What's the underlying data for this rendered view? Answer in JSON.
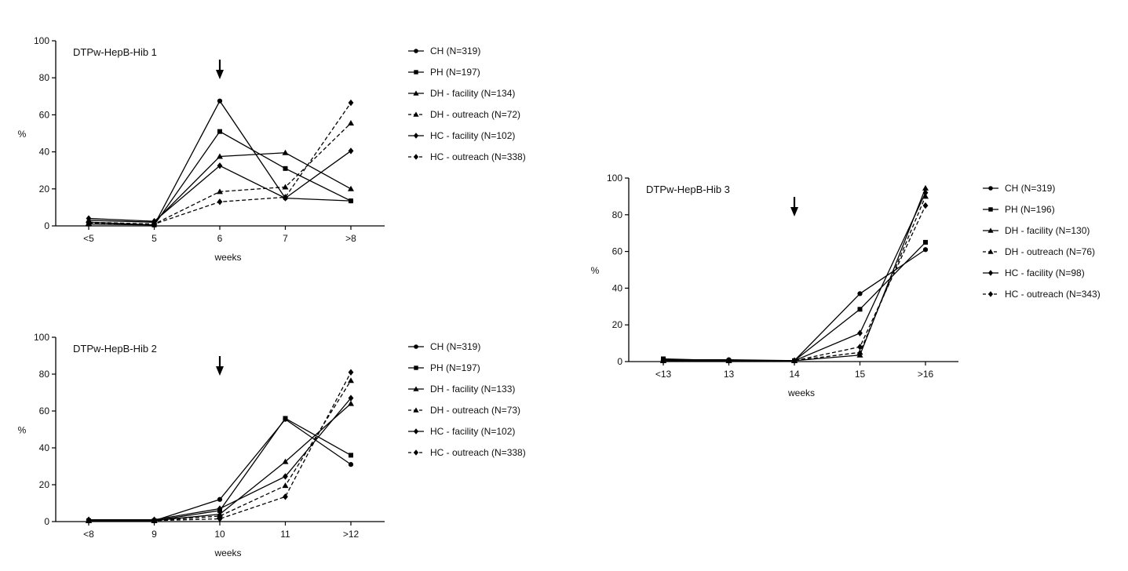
{
  "chart_data": [
    {
      "type": "line",
      "title": "DTPw-HepB-Hib 1",
      "xlabel": "weeks",
      "ylabel": "%",
      "categories": [
        "<5",
        "5",
        "6",
        "7",
        ">8"
      ],
      "ylim": [
        0,
        100
      ],
      "yticks": [
        "0",
        "20",
        "40",
        "60",
        "80",
        "100"
      ],
      "arrow_at": "6",
      "legend_position": "right",
      "series": [
        {
          "name": "CH (N=319)",
          "marker": "circle",
          "dashed": false,
          "values": [
            2,
            0.5,
            67.5,
            15,
            13.5
          ]
        },
        {
          "name": "PH (N=197)",
          "marker": "square",
          "dashed": false,
          "values": [
            1,
            0.5,
            51,
            31,
            13.5
          ]
        },
        {
          "name": "DH - facility (N=134)",
          "marker": "triangle",
          "dashed": false,
          "values": [
            3,
            2,
            37.5,
            39.5,
            20
          ]
        },
        {
          "name": "DH - outreach (N=72)",
          "marker": "triangle",
          "dashed": true,
          "values": [
            1.5,
            1,
            18.5,
            21,
            55.5
          ]
        },
        {
          "name": "HC - facility (N=102)",
          "marker": "diamond",
          "dashed": false,
          "values": [
            4,
            2.5,
            32.5,
            15,
            40.5
          ]
        },
        {
          "name": "HC - outreach (N=338)",
          "marker": "diamond",
          "dashed": true,
          "values": [
            2,
            1,
            13,
            15.5,
            66.5
          ]
        }
      ]
    },
    {
      "type": "line",
      "title": "DTPw-HepB-Hib 2",
      "xlabel": "weeks",
      "ylabel": "%",
      "categories": [
        "<8",
        "9",
        "10",
        "11",
        ">12"
      ],
      "ylim": [
        0,
        100
      ],
      "yticks": [
        "0",
        "20",
        "40",
        "60",
        "80",
        "100"
      ],
      "arrow_at": "10",
      "legend_position": "right",
      "series": [
        {
          "name": "CH (N=319)",
          "marker": "circle",
          "dashed": false,
          "values": [
            0.5,
            0.5,
            12,
            55.5,
            31
          ]
        },
        {
          "name": "PH (N=197)",
          "marker": "square",
          "dashed": false,
          "values": [
            0.5,
            0.5,
            6,
            56,
            36
          ]
        },
        {
          "name": "DH - facility (N=133)",
          "marker": "triangle",
          "dashed": false,
          "values": [
            0.5,
            0.5,
            4,
            32.5,
            64
          ]
        },
        {
          "name": "DH - outreach (N=73)",
          "marker": "triangle",
          "dashed": true,
          "values": [
            0.5,
            0.5,
            3,
            19.5,
            76.5
          ]
        },
        {
          "name": "HC - facility (N=102)",
          "marker": "diamond",
          "dashed": false,
          "values": [
            1,
            1,
            7,
            24.5,
            67
          ]
        },
        {
          "name": "HC - outreach (N=338)",
          "marker": "diamond",
          "dashed": true,
          "values": [
            0.5,
            0.5,
            1.5,
            13.5,
            81
          ]
        }
      ]
    },
    {
      "type": "line",
      "title": "DTPw-HepB-Hib 3",
      "xlabel": "weeks",
      "ylabel": "%",
      "categories": [
        "<13",
        "13",
        "14",
        "15",
        ">16"
      ],
      "ylim": [
        0,
        100
      ],
      "yticks": [
        "0",
        "20",
        "40",
        "60",
        "80",
        "100"
      ],
      "arrow_at": "14",
      "legend_position": "right",
      "series": [
        {
          "name": "CH (N=319)",
          "marker": "circle",
          "dashed": false,
          "values": [
            1,
            1,
            0.5,
            37,
            61
          ]
        },
        {
          "name": "PH (N=196)",
          "marker": "square",
          "dashed": false,
          "values": [
            1.5,
            0.5,
            0.5,
            28.5,
            65
          ]
        },
        {
          "name": "DH - facility (N=130)",
          "marker": "triangle",
          "dashed": false,
          "values": [
            0.5,
            0.5,
            0.5,
            3.5,
            94.5
          ]
        },
        {
          "name": "DH - outreach (N=76)",
          "marker": "triangle",
          "dashed": true,
          "values": [
            0.5,
            0.5,
            0.5,
            5,
            90
          ]
        },
        {
          "name": "HC - facility (N=98)",
          "marker": "diamond",
          "dashed": false,
          "values": [
            0.5,
            0.5,
            0.5,
            15.5,
            92
          ]
        },
        {
          "name": "HC - outreach (N=343)",
          "marker": "diamond",
          "dashed": true,
          "values": [
            0.5,
            0.5,
            0.5,
            8,
            85
          ]
        }
      ]
    }
  ]
}
